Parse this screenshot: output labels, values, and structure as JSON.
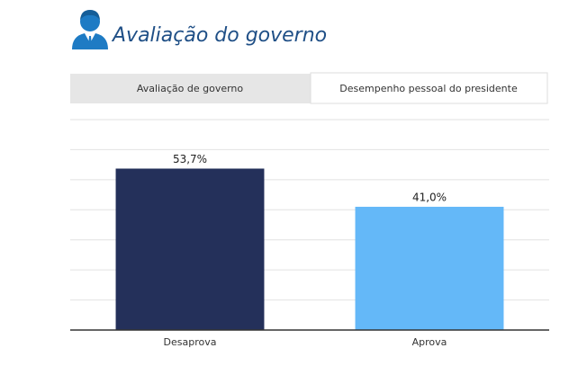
{
  "header": {
    "title": "Avaliação do governo"
  },
  "tabs": [
    "Avaliação de governo",
    "Desempenho pessoal do presidente"
  ],
  "chart_data": {
    "type": "bar",
    "categories": [
      "Desaprova",
      "Aprova"
    ],
    "values": [
      53.7,
      41.0
    ],
    "value_labels": [
      "53,7%",
      "41,0%"
    ],
    "colors": [
      "#24305a",
      "#64b8f8"
    ],
    "ylim": [
      0,
      70
    ],
    "yticks": [
      0,
      10,
      20,
      30,
      40,
      50,
      60,
      70
    ],
    "grid": true
  }
}
